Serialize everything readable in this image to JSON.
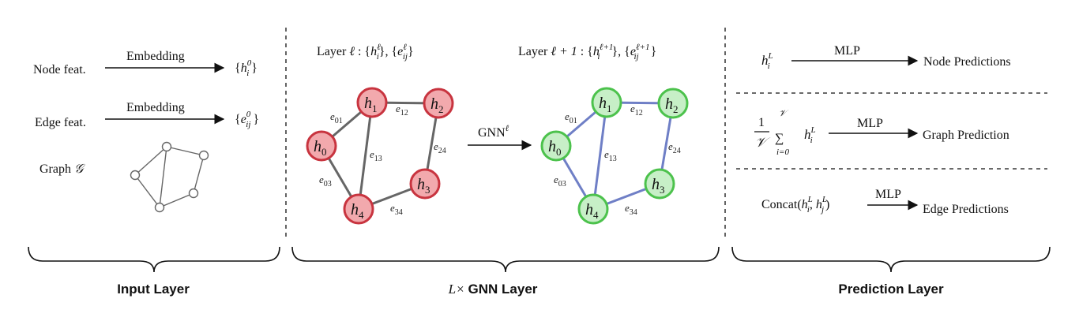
{
  "colors": {
    "red_fill": "#f2a9ad",
    "red_stroke": "#c8343f",
    "green_fill": "#c7efc7",
    "green_stroke": "#4cc24c",
    "gray_edge": "#666666",
    "blue_edge": "#6f7fc6"
  },
  "input": {
    "node_feat": "Node feat.",
    "edge_feat": "Edge feat.",
    "embedding_1": "Embedding",
    "embedding_2": "Embedding",
    "graph_label": "Graph",
    "graph_symbol": "𝒢",
    "node_out_base": "h",
    "node_out_sup": "0",
    "node_out_sub": "i",
    "edge_out_base": "e",
    "edge_out_sup": "0",
    "edge_out_sub": "ij"
  },
  "gnn": {
    "layer_left": {
      "prefix": "Layer",
      "ell": "ℓ",
      "h_sup": "ℓ",
      "e_sup": "ℓ"
    },
    "layer_right": {
      "prefix": "Layer",
      "ell": "ℓ + 1",
      "h_sup": "ℓ+1",
      "e_sup": "ℓ+1"
    },
    "op_label": "GNN",
    "op_sup": "ℓ",
    "nodes": [
      {
        "base": "h",
        "sub": "0"
      },
      {
        "base": "h",
        "sub": "1"
      },
      {
        "base": "h",
        "sub": "2"
      },
      {
        "base": "h",
        "sub": "3"
      },
      {
        "base": "h",
        "sub": "4"
      }
    ],
    "edge_labels": [
      {
        "base": "e",
        "sub": "01"
      },
      {
        "base": "e",
        "sub": "12"
      },
      {
        "base": "e",
        "sub": "13"
      },
      {
        "base": "e",
        "sub": "24"
      },
      {
        "base": "e",
        "sub": "03"
      },
      {
        "base": "e",
        "sub": "34"
      }
    ]
  },
  "prediction": {
    "node_input_base": "h",
    "node_input_sup": "L",
    "node_input_sub": "i",
    "mlp_1": "MLP",
    "node_predictions": "Node Predictions",
    "frac_num": "1",
    "frac_den": "𝒱",
    "sum_upper": "𝒱",
    "sum_lower": "i=0",
    "mlp_2": "MLP",
    "graph_prediction": "Graph Prediction",
    "concat": "Concat(",
    "mlp_3": "MLP",
    "edge_predictions": "Edge Predictions"
  },
  "sections": {
    "input_layer": "Input Layer",
    "gnn_layer_math": "L×",
    "gnn_layer": "GNN Layer",
    "prediction_layer": "Prediction Layer"
  }
}
